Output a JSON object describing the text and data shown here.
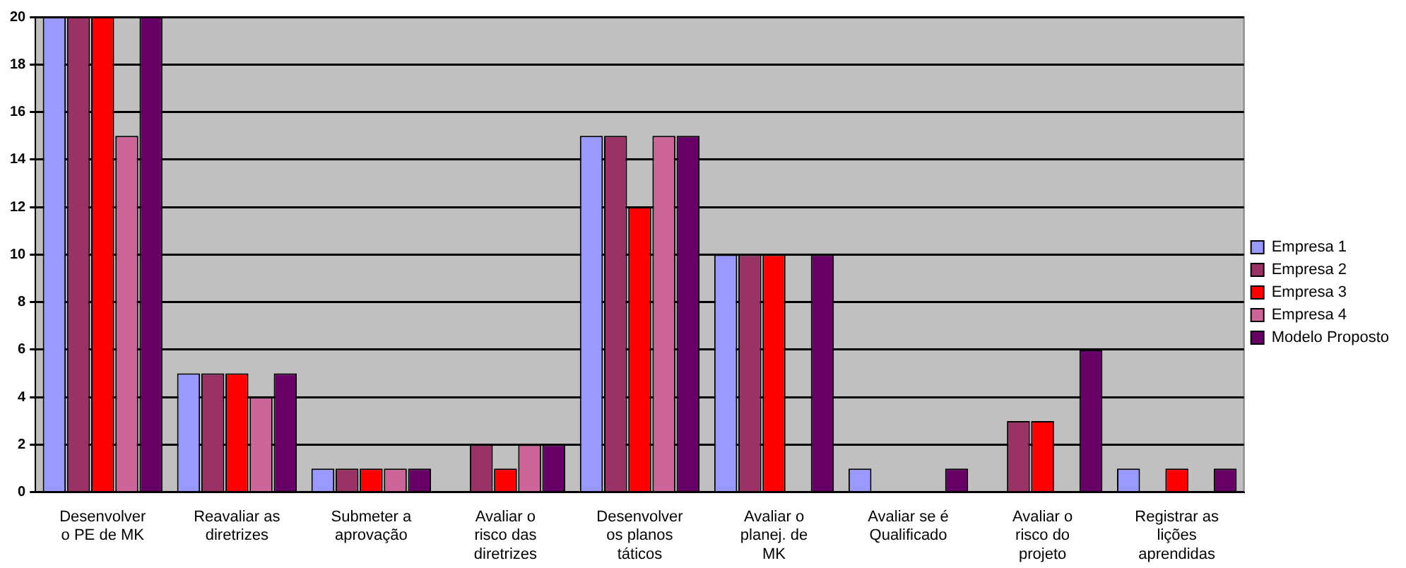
{
  "chart_data": {
    "type": "bar",
    "categories": [
      "Desenvolver o PE de MK",
      "Reavaliar as diretrizes",
      "Submeter a aprovação",
      "Avaliar o risco das diretrizes",
      "Desenvolver os planos táticos",
      "Avaliar o planej. de MK",
      "Avaliar se é Qualificado",
      "Avaliar o risco do projeto",
      "Registrar as lições aprendidas"
    ],
    "series": [
      {
        "name": "Empresa 1",
        "color": "#9999ff",
        "values": [
          20,
          5,
          1,
          0,
          15,
          10,
          1,
          0,
          1
        ]
      },
      {
        "name": "Empresa 2",
        "color": "#993366",
        "values": [
          20,
          5,
          1,
          2,
          15,
          10,
          0,
          3,
          0
        ]
      },
      {
        "name": "Empresa 3",
        "color": "#ff0000",
        "values": [
          20,
          5,
          1,
          1,
          12,
          10,
          0,
          3,
          1
        ]
      },
      {
        "name": "Empresa 4",
        "color": "#cc6699",
        "values": [
          15,
          4,
          1,
          2,
          15,
          0,
          0,
          0,
          0
        ]
      },
      {
        "name": "Modelo Proposto",
        "color": "#660066",
        "values": [
          20,
          5,
          1,
          2,
          15,
          10,
          1,
          6,
          1
        ]
      }
    ],
    "ylim": [
      0,
      20
    ],
    "yticks": [
      0,
      2,
      4,
      6,
      8,
      10,
      12,
      14,
      16,
      18,
      20
    ],
    "grid": "y",
    "legend": "right"
  }
}
